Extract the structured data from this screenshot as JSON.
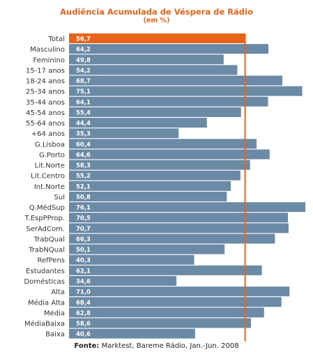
{
  "colors": {
    "bar": "#6b8aa6",
    "highlight": "#e8641b",
    "reference_line": "#e8641b",
    "title": "#e8641b"
  },
  "chart_data": {
    "type": "bar",
    "orientation": "horizontal",
    "title": "Audiência Acumulada de Véspera de Rádio",
    "subtitle": "(em %)",
    "categories": [
      "Total",
      "Masculino",
      "Feminino",
      "15-17 anos",
      "18-24 anos",
      "25-34 anos",
      "35-44 anos",
      "45-54 anos",
      "55-64 anos",
      "+64 anos",
      "G.Lisboa",
      "G.Porto",
      "Lit.Norte",
      "Lit.Centro",
      "Int.Norte",
      "Sul",
      "Q.MédSup",
      "T.EspPProp.",
      "SerAdCom.",
      "TrabQual",
      "TrabNQual",
      "RefPens",
      "Estudantes",
      "Domésticas",
      "Alta",
      "Média Alta",
      "Média",
      "MédiaBaixa",
      "Baixa"
    ],
    "value_labels": [
      "56,7",
      "64,2",
      "49,8",
      "54,2",
      "68,7",
      "75,1",
      "64,1",
      "55,4",
      "44,4",
      "35,3",
      "60,4",
      "64,6",
      "58,3",
      "55,2",
      "52,1",
      "50,8",
      "76,1",
      "70,5",
      "70,7",
      "66,3",
      "50,1",
      "40,3",
      "62,1",
      "34,6",
      "71,0",
      "68,4",
      "62,8",
      "58,6",
      "40,6"
    ],
    "values": [
      56.7,
      64.2,
      49.8,
      54.2,
      68.7,
      75.1,
      64.1,
      55.4,
      44.4,
      35.3,
      60.4,
      64.6,
      58.3,
      55.2,
      52.1,
      50.8,
      76.1,
      70.5,
      70.7,
      66.3,
      50.1,
      40.3,
      62.1,
      34.6,
      71.0,
      68.4,
      62.8,
      58.6,
      40.6
    ],
    "highlighted_category": "Total",
    "reference_line_value": 56.7,
    "xlim": [
      0,
      76.1
    ]
  },
  "source": {
    "label": "Fonte:",
    "text": " Marktest, Bareme Rádio, Jan.-Jun. 2008"
  }
}
